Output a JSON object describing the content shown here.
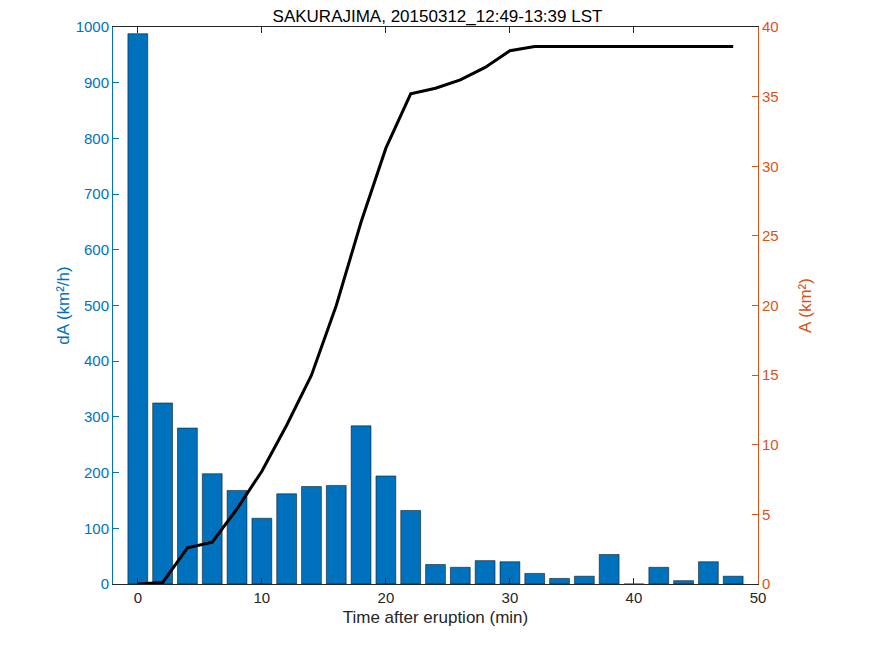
{
  "chart_data": {
    "type": "bar",
    "title": "SAKURAJIMA, 20150312_12:49-13:39 LST",
    "x_label": "Time after eruption (min)",
    "y_label": "dA (km²/h)",
    "y2_label": "A (km²)",
    "x": [
      0,
      2,
      4,
      6,
      8,
      10,
      12,
      14,
      16,
      18,
      20,
      22,
      24,
      26,
      28,
      30,
      32,
      34,
      36,
      38,
      40,
      42,
      44,
      46,
      48
    ],
    "series": [
      {
        "name": "dA",
        "type": "bar",
        "axis": "y",
        "color": "#0072BD",
        "values": [
          988,
          325,
          280,
          198,
          168,
          118,
          162,
          175,
          177,
          284,
          194,
          132,
          35,
          30,
          42,
          40,
          19,
          10,
          14,
          53,
          0,
          30,
          6,
          40,
          14
        ]
      },
      {
        "name": "A",
        "type": "line",
        "axis": "y2",
        "color": "#000000",
        "line_style": "solid",
        "values": [
          0,
          0.1,
          2.6,
          3.0,
          5.4,
          8.1,
          11.4,
          15.0,
          20.0,
          26.0,
          31.3,
          35.2,
          35.6,
          36.2,
          37.1,
          38.3,
          38.6,
          38.6,
          38.6,
          38.6,
          38.6,
          38.6,
          38.6,
          38.6,
          38.6
        ]
      }
    ],
    "xlim": [
      -2,
      50
    ],
    "xticks": [
      0,
      10,
      20,
      30,
      40,
      50
    ],
    "ylim": [
      0,
      1000
    ],
    "yticks": [
      0,
      100,
      200,
      300,
      400,
      500,
      600,
      700,
      800,
      900,
      1000
    ],
    "y2lim": [
      0,
      40
    ],
    "y2ticks": [
      0,
      5,
      10,
      15,
      20,
      25,
      30,
      35,
      40
    ],
    "y_color": "#0072BD",
    "y2_color": "#D95319",
    "grid": false
  }
}
